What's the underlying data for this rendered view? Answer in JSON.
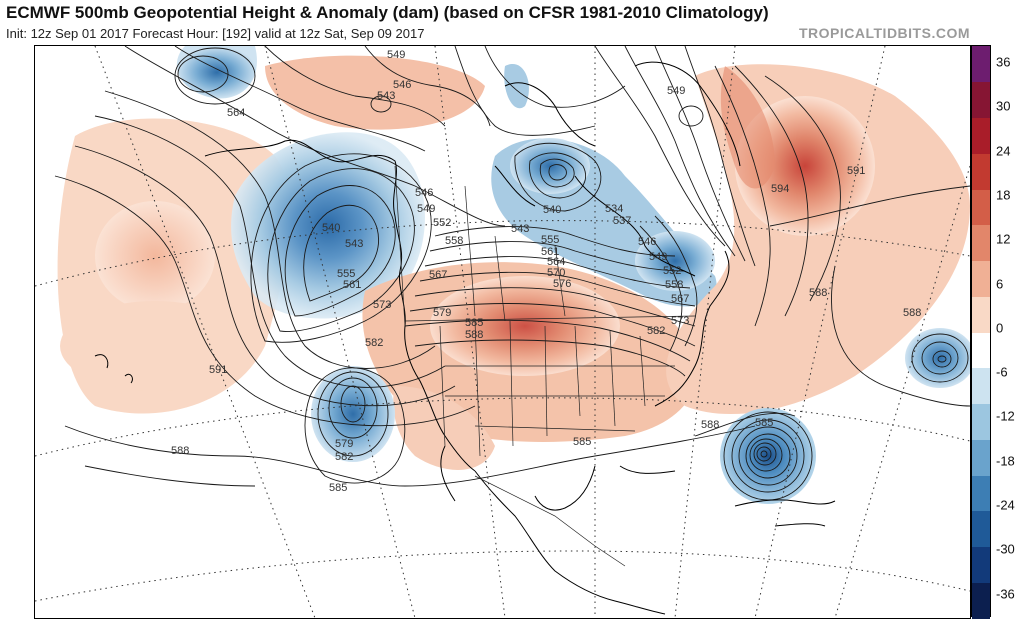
{
  "header": {
    "title": "ECMWF 500mb Geopotential Height & Anomaly (dam) (based on CFSR 1981-2010 Climatology)",
    "init_info": "Init: 12z Sep 01 2017   Forecast Hour: [192]   valid at 12z Sat, Sep 09 2017",
    "brand": "TROPICALTIDBITS.COM"
  },
  "colorbar": {
    "labels": [
      "36",
      "30",
      "24",
      "18",
      "12",
      "6",
      "0",
      "-6",
      "-12",
      "-18",
      "-24",
      "-30",
      "-36"
    ],
    "colors": [
      "#0c1f4f",
      "#123a7a",
      "#1f5a98",
      "#3d7eb4",
      "#6aa3cc",
      "#9cc6e0",
      "#cde3f0",
      "#ffffff",
      "#f9d9c6",
      "#f0b095",
      "#e2866a",
      "#d35e48",
      "#c23a30",
      "#a91d29",
      "#861533",
      "#6d1d6f"
    ]
  },
  "contour_labels": [
    {
      "text": "549"
    },
    {
      "text": "546"
    },
    {
      "text": "543"
    },
    {
      "text": "564"
    },
    {
      "text": "549"
    },
    {
      "text": "546"
    },
    {
      "text": "549"
    },
    {
      "text": "552"
    },
    {
      "text": "558"
    },
    {
      "text": "540"
    },
    {
      "text": "543"
    },
    {
      "text": "555"
    },
    {
      "text": "561"
    },
    {
      "text": "573"
    },
    {
      "text": "567"
    },
    {
      "text": "579"
    },
    {
      "text": "585"
    },
    {
      "text": "588"
    },
    {
      "text": "582"
    },
    {
      "text": "540"
    },
    {
      "text": "543"
    },
    {
      "text": "555"
    },
    {
      "text": "561"
    },
    {
      "text": "564"
    },
    {
      "text": "570"
    },
    {
      "text": "576"
    },
    {
      "text": "537"
    },
    {
      "text": "534"
    },
    {
      "text": "546"
    },
    {
      "text": "549"
    },
    {
      "text": "552"
    },
    {
      "text": "558"
    },
    {
      "text": "567"
    },
    {
      "text": "573"
    },
    {
      "text": "582"
    },
    {
      "text": "594"
    },
    {
      "text": "591"
    },
    {
      "text": "588"
    },
    {
      "text": "588"
    },
    {
      "text": "591"
    },
    {
      "text": "588"
    },
    {
      "text": "579"
    },
    {
      "text": "582"
    },
    {
      "text": "585"
    },
    {
      "text": "585"
    },
    {
      "text": "588"
    },
    {
      "text": "585"
    }
  ]
}
